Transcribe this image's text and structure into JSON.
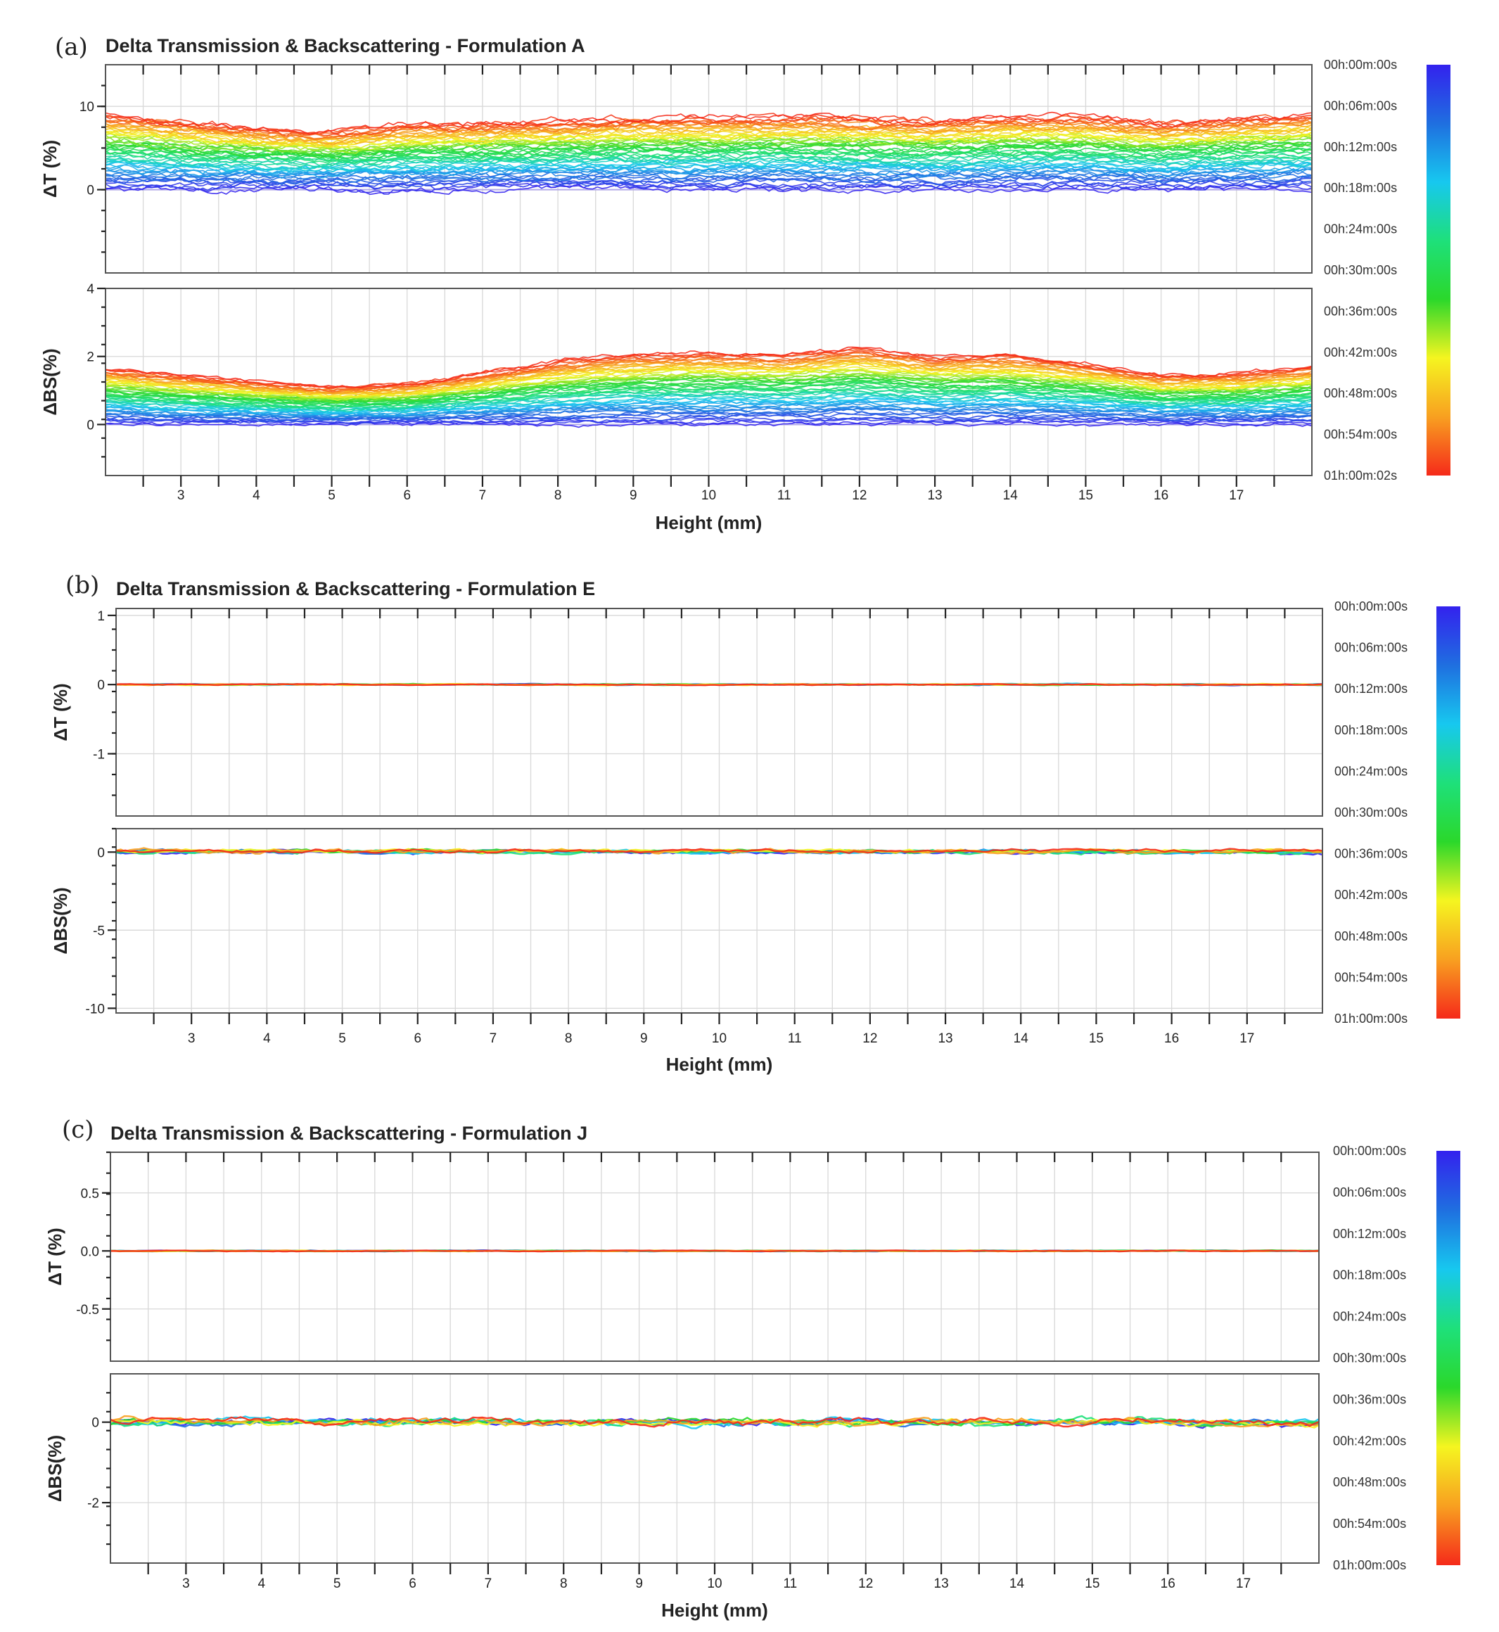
{
  "chart_data": [
    {
      "type": "line",
      "panel_letter": "(a)",
      "title": "Delta Transmission & Backscattering - Formulation A",
      "xlabel": "Height (mm)",
      "xlim": [
        2.0,
        18.0
      ],
      "x_ticks": [
        "3",
        "4",
        "5",
        "6",
        "7",
        "8",
        "9",
        "10",
        "11",
        "12",
        "13",
        "14",
        "15",
        "16",
        "17"
      ],
      "grid": true,
      "legend_position": "right",
      "colorbar_labels": [
        "00h:00m:00s",
        "00h:06m:00s",
        "00h:12m:00s",
        "00h:18m:00s",
        "00h:24m:00s",
        "00h:30m:00s",
        "00h:36m:00s",
        "00h:42m:00s",
        "00h:48m:00s",
        "00h:54m:00s",
        "01h:00m:02s"
      ],
      "colorscale": [
        "#3322ee",
        "#1f6fe0",
        "#17c8ef",
        "#1ee07a",
        "#2bd82b",
        "#f5f520",
        "#f8a020",
        "#f52a1a"
      ],
      "transmission": {
        "ylabel": "ΔT (%)",
        "ylim": [
          -10,
          15
        ],
        "y_ticks": [
          {
            "value": 0,
            "label": "0"
          },
          {
            "value": 10,
            "label": "10"
          }
        ],
        "series_count": 60,
        "profile_x": [
          2,
          3,
          4,
          5,
          6,
          7,
          8,
          9,
          10,
          11,
          12,
          13,
          14,
          15,
          16,
          17,
          18
        ],
        "final_profile_y": [
          9.0,
          8.2,
          7.5,
          7.0,
          7.8,
          8.0,
          8.3,
          8.6,
          8.7,
          8.8,
          8.5,
          8.2,
          8.8,
          8.8,
          8.0,
          8.5,
          9.0
        ],
        "noise": 0.45
      },
      "backscattering": {
        "ylabel": "ΔBS(%)",
        "ylim": [
          -1.5,
          4.0
        ],
        "y_ticks": [
          {
            "value": 0,
            "label": "0"
          },
          {
            "value": 2,
            "label": "2"
          },
          {
            "value": 4,
            "label": "4"
          }
        ],
        "series_count": 60,
        "profile_x": [
          2,
          3,
          4,
          5,
          6,
          7,
          8,
          9,
          10,
          11,
          12,
          13,
          14,
          15,
          16,
          17,
          18
        ],
        "final_profile_y": [
          1.65,
          1.45,
          1.25,
          1.1,
          1.2,
          1.5,
          1.85,
          2.05,
          2.1,
          2.05,
          2.25,
          2.0,
          2.05,
          1.8,
          1.45,
          1.5,
          1.7
        ],
        "noise": 0.07
      }
    },
    {
      "type": "line",
      "panel_letter": "(b)",
      "title": "Delta Transmission & Backscattering - Formulation E",
      "xlabel": "Height (mm)",
      "xlim": [
        2.0,
        18.0
      ],
      "x_ticks": [
        "3",
        "4",
        "5",
        "6",
        "7",
        "8",
        "9",
        "10",
        "11",
        "12",
        "13",
        "14",
        "15",
        "16",
        "17"
      ],
      "grid": true,
      "legend_position": "right",
      "colorbar_labels": [
        "00h:00m:00s",
        "00h:06m:00s",
        "00h:12m:00s",
        "00h:18m:00s",
        "00h:24m:00s",
        "00h:30m:00s",
        "00h:36m:00s",
        "00h:42m:00s",
        "00h:48m:00s",
        "00h:54m:00s",
        "01h:00m:00s"
      ],
      "colorscale": [
        "#3322ee",
        "#1f6fe0",
        "#17c8ef",
        "#1ee07a",
        "#2bd82b",
        "#f5f520",
        "#f8a020",
        "#f52a1a"
      ],
      "transmission": {
        "ylabel": "ΔT (%)",
        "ylim": [
          -1.9,
          1.1
        ],
        "y_ticks": [
          {
            "value": 1,
            "label": "1"
          },
          {
            "value": 0,
            "label": "0"
          },
          {
            "value": -1,
            "label": "-1"
          }
        ],
        "series_count": 8,
        "profile_x": [
          2,
          18
        ],
        "final_profile_y": [
          0.0,
          0.0
        ],
        "noise": 0.008
      },
      "backscattering": {
        "ylabel": "ΔBS(%)",
        "ylim": [
          -10.3,
          1.5
        ],
        "y_ticks": [
          {
            "value": 0,
            "label": "0"
          },
          {
            "value": -5,
            "label": "-5"
          },
          {
            "value": -10,
            "label": "-10"
          }
        ],
        "series_count": 8,
        "profile_x": [
          2,
          18
        ],
        "final_profile_y": [
          0.1,
          0.05
        ],
        "noise": 0.12
      }
    },
    {
      "type": "line",
      "panel_letter": "(c)",
      "title": "Delta Transmission & Backscattering - Formulation J",
      "xlabel": "Height (mm)",
      "xlim": [
        2.0,
        18.0
      ],
      "x_ticks": [
        "3",
        "4",
        "5",
        "6",
        "7",
        "8",
        "9",
        "10",
        "11",
        "12",
        "13",
        "14",
        "15",
        "16",
        "17"
      ],
      "grid": true,
      "legend_position": "right",
      "colorbar_labels": [
        "00h:00m:00s",
        "00h:06m:00s",
        "00h:12m:00s",
        "00h:18m:00s",
        "00h:24m:00s",
        "00h:30m:00s",
        "00h:36m:00s",
        "00h:42m:00s",
        "00h:48m:00s",
        "00h:54m:00s",
        "01h:00m:00s"
      ],
      "colorscale": [
        "#3322ee",
        "#1f6fe0",
        "#17c8ef",
        "#1ee07a",
        "#2bd82b",
        "#f5f520",
        "#f8a020",
        "#f52a1a"
      ],
      "transmission": {
        "ylabel": "ΔT (%)",
        "ylim": [
          -0.95,
          0.85
        ],
        "y_ticks": [
          {
            "value": 0.5,
            "label": "0.5"
          },
          {
            "value": 0.0,
            "label": "0.0"
          },
          {
            "value": -0.5,
            "label": "-0.5"
          }
        ],
        "series_count": 8,
        "profile_x": [
          2,
          18
        ],
        "final_profile_y": [
          0.0,
          0.0
        ],
        "noise": 0.004
      },
      "backscattering": {
        "ylabel": "ΔBS(%)",
        "ylim": [
          -3.5,
          1.2
        ],
        "y_ticks": [
          {
            "value": 0,
            "label": "0"
          },
          {
            "value": -2,
            "label": "-2"
          }
        ],
        "series_count": 8,
        "profile_x": [
          2,
          18
        ],
        "final_profile_y": [
          0.0,
          0.0
        ],
        "noise": 0.09
      }
    }
  ]
}
